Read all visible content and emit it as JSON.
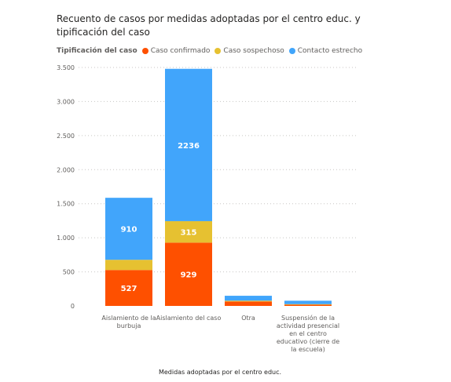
{
  "chart_data": {
    "type": "bar",
    "stacked": true,
    "title": "Recuento de casos por medidas adoptadas por el centro educ. y tipificación del caso",
    "xlabel": "Medidas adoptadas por el centro educ.",
    "ylabel": "",
    "ylim": [
      0,
      3500
    ],
    "yticks": [
      0,
      500,
      1000,
      1500,
      2000,
      2500,
      3000,
      3500
    ],
    "ytick_labels": [
      "0",
      "500",
      "1.000",
      "1.500",
      "2.000",
      "2.500",
      "3.000",
      "3.500"
    ],
    "grid": true,
    "legend_title": "Tipificación del caso",
    "legend_position": "top-left",
    "categories": [
      "Aislamiento de la burbuja",
      "Aislamiento del caso",
      "Otra",
      "Suspensión de la actividad presencial en el centro educativo (cierre de la escuela)"
    ],
    "series": [
      {
        "name": "Caso confirmado",
        "color": "#FE5000",
        "values": [
          527,
          929,
          65,
          18
        ]
      },
      {
        "name": "Caso sospechoso",
        "color": "#E6C131",
        "values": [
          150,
          315,
          12,
          8
        ]
      },
      {
        "name": "Contacto estrecho",
        "color": "#41A5FB",
        "values": [
          910,
          2236,
          72,
          50
        ]
      }
    ],
    "data_label_min": 300
  }
}
